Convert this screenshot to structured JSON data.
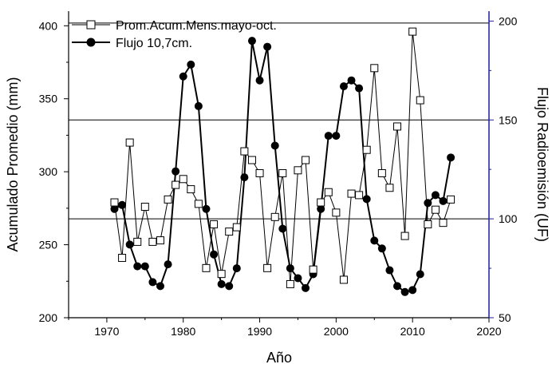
{
  "chart_data": {
    "type": "line",
    "xlabel": "Año",
    "ylabel": "Acumulado Promedio (mm)",
    "y2label": "Flujo Radioemisión (UF)",
    "xlim": [
      1965,
      2020
    ],
    "ylim": [
      200,
      410
    ],
    "y2lim": [
      50,
      205
    ],
    "x_ticks": [
      1970,
      1980,
      1990,
      2000,
      2010,
      2020
    ],
    "y_ticks": [
      200,
      250,
      300,
      350,
      400
    ],
    "y2_ticks": [
      50,
      100,
      150,
      200
    ],
    "left_axis_color": "#000000",
    "right_axis_color": "#1f1fa0",
    "reference_lines": [
      {
        "axis": "y2",
        "value": 199
      },
      {
        "axis": "y2",
        "value": 150
      },
      {
        "axis": "y2",
        "value": 100
      }
    ],
    "legend_position": "top-left",
    "series": [
      {
        "name": "Prom.Acum.Mens.mayo-oct.",
        "axis": "y",
        "marker": "open-square",
        "line_width": "thin",
        "x": [
          1971,
          1972,
          1973,
          1974,
          1975,
          1976,
          1977,
          1978,
          1979,
          1980,
          1981,
          1982,
          1983,
          1984,
          1985,
          1986,
          1987,
          1988,
          1989,
          1990,
          1991,
          1992,
          1993,
          1994,
          1995,
          1996,
          1997,
          1998,
          1999,
          2000,
          2001,
          2002,
          2003,
          2004,
          2005,
          2006,
          2007,
          2008,
          2009,
          2010,
          2011,
          2012,
          2013,
          2014,
          2015
        ],
        "y": [
          279,
          241,
          320,
          252,
          276,
          252,
          253,
          281,
          291,
          295,
          288,
          278,
          234,
          264,
          230,
          259,
          262,
          314,
          308,
          299,
          234,
          269,
          299,
          223,
          301,
          308,
          233,
          279,
          286,
          272,
          226,
          285,
          284,
          315,
          371,
          299,
          289,
          331,
          256,
          396,
          349,
          264,
          274,
          265,
          281
        ]
      },
      {
        "name": "Flujo 10,7cm.",
        "axis": "y2",
        "marker": "filled-circle",
        "line_width": "thick",
        "x": [
          1971,
          1972,
          1973,
          1974,
          1975,
          1976,
          1977,
          1978,
          1979,
          1980,
          1981,
          1982,
          1983,
          1984,
          1985,
          1986,
          1987,
          1988,
          1989,
          1990,
          1991,
          1992,
          1993,
          1994,
          1995,
          1996,
          1997,
          1998,
          1999,
          2000,
          2001,
          2002,
          2003,
          2004,
          2005,
          2006,
          2007,
          2008,
          2009,
          2010,
          2011,
          2012,
          2013,
          2014,
          2015
        ],
        "y": [
          105,
          107,
          87,
          76,
          76,
          68,
          66,
          77,
          124,
          172,
          178,
          157,
          105,
          82,
          67,
          66,
          75,
          121,
          190,
          170,
          187,
          137,
          95,
          75,
          70,
          65,
          72,
          105,
          142,
          142,
          167,
          170,
          166,
          110,
          89,
          85,
          74,
          66,
          63,
          64,
          72,
          108,
          112,
          109,
          131
        ]
      }
    ]
  }
}
